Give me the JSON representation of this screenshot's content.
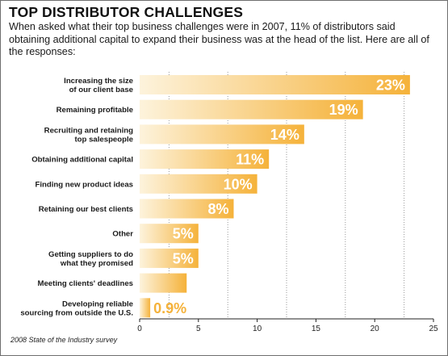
{
  "title": "TOP DISTRIBUTOR CHALLENGES",
  "subtitle": "When asked what their top business challenges were in 2007, 11% of distributors said obtaining additional capital to expand their business was at the head of the list. Here are all of the responses:",
  "source": "2008 State of the Industry survey",
  "chart_data": {
    "type": "bar",
    "orientation": "horizontal",
    "categories": [
      [
        "Increasing the size",
        "of our client base"
      ],
      [
        "Remaining profitable"
      ],
      [
        "Recruiting and retaining",
        "top salespeople"
      ],
      [
        "Obtaining additional capital"
      ],
      [
        "Finding new product ideas"
      ],
      [
        "Retaining our best clients"
      ],
      [
        "Other"
      ],
      [
        "Getting suppliers to do",
        "what they promised"
      ],
      [
        "Meeting clients' deadlines"
      ],
      [
        "Developing reliable",
        "sourcing from outside the U.S."
      ]
    ],
    "values": [
      23,
      19,
      14,
      11,
      10,
      8,
      5,
      5,
      4,
      0.9
    ],
    "value_labels": [
      "23%",
      "19%",
      "14%",
      "11%",
      "10%",
      "8%",
      "5%",
      "5%",
      "4%",
      "0.9%"
    ],
    "xlim": [
      0,
      25
    ],
    "xticks": [
      0,
      5,
      10,
      15,
      20,
      25
    ],
    "grid": true,
    "bar_color": "#f5b23a",
    "bar_color_light": "#fdf3dc"
  }
}
